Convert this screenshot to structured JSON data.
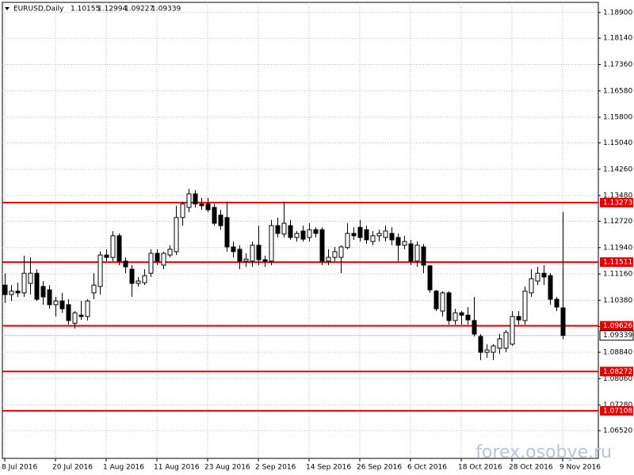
{
  "chart_data": {
    "type": "candlestick",
    "title": "EURUSD,Daily",
    "watermark": "forex.osobye.ru",
    "categories": [
      "8 Jul 2016",
      null,
      null,
      null,
      null,
      null,
      null,
      null,
      "20 Jul 2016",
      null,
      null,
      null,
      null,
      null,
      null,
      null,
      "1 Aug 2016",
      null,
      null,
      null,
      null,
      null,
      null,
      null,
      "11 Aug 2016",
      null,
      null,
      null,
      null,
      null,
      null,
      null,
      "23 Aug 2016",
      null,
      null,
      null,
      null,
      null,
      null,
      null,
      "2 Sep 2016",
      null,
      null,
      null,
      null,
      null,
      null,
      null,
      "14 Sep 2016",
      null,
      null,
      null,
      null,
      null,
      null,
      null,
      "26 Sep 2016",
      null,
      null,
      null,
      null,
      null,
      null,
      null,
      "6 Oct 2016",
      null,
      null,
      null,
      null,
      null,
      null,
      null,
      "18 Oct 2016",
      null,
      null,
      null,
      null,
      null,
      null,
      null,
      "28 Oct 2016",
      null,
      null,
      null,
      null,
      null,
      null,
      null,
      "9 Nov 2016"
    ],
    "open": [
      1.1083,
      1.1055,
      1.1065,
      1.106,
      1.1088,
      1.1118,
      1.1079,
      1.1069,
      1.1025,
      1.1036,
      1.1025,
      1.097,
      1.0994,
      1.099,
      1.106,
      1.1079,
      1.1172,
      1.1165,
      1.1229,
      1.1154,
      1.113,
      1.1088,
      1.109,
      1.1118,
      1.1177,
      1.1142,
      1.1172,
      1.1182,
      1.1283,
      1.1313,
      1.1353,
      1.1323,
      1.1323,
      1.1313,
      1.129,
      1.1283,
      1.1196,
      1.1189,
      1.1154,
      1.1154,
      1.1201,
      1.1158,
      1.1154,
      1.1259,
      1.1234,
      1.1259,
      1.1224,
      1.1243,
      1.1224,
      1.1247,
      1.1247,
      1.1154,
      1.1165,
      1.1165,
      1.1194,
      1.1236,
      1.1254,
      1.1247,
      1.1212,
      1.1229,
      1.1224,
      1.1236,
      1.1224,
      1.1201,
      1.1205,
      1.1154,
      1.1196,
      1.114,
      1.1065,
      1.1006,
      1.106,
      1.0978,
      1.1001,
      1.0994,
      1.0978,
      1.0931,
      1.0884,
      1.0884,
      1.0896,
      1.0896,
      1.0908,
      1.099,
      1.0978,
      1.106,
      1.1095,
      1.1118,
      1.1111,
      1.1041,
      1.10155
    ],
    "high": [
      1.1118,
      1.1083,
      1.109,
      1.117,
      1.1165,
      1.113,
      1.1095,
      1.1083,
      1.1048,
      1.106,
      1.1041,
      1.1006,
      1.1036,
      1.1041,
      1.1118,
      1.1183,
      1.1189,
      1.1243,
      1.1236,
      1.1165,
      1.1142,
      1.1107,
      1.113,
      1.1189,
      1.1189,
      1.1182,
      1.1201,
      1.1318,
      1.133,
      1.1368,
      1.1364,
      1.1341,
      1.1341,
      1.1323,
      1.1306,
      1.133,
      1.1212,
      1.1201,
      1.1177,
      1.1212,
      1.1259,
      1.117,
      1.1276,
      1.1283,
      1.133,
      1.1276,
      1.1243,
      1.1259,
      1.1266,
      1.1254,
      1.1254,
      1.1189,
      1.1196,
      1.1201,
      1.1266,
      1.1254,
      1.1276,
      1.1259,
      1.1243,
      1.1247,
      1.1259,
      1.1254,
      1.1236,
      1.1229,
      1.1217,
      1.1212,
      1.1205,
      1.1142,
      1.1069,
      1.1065,
      1.1065,
      1.1013,
      1.1006,
      1.1018,
      1.1048,
      1.0938,
      1.0908,
      1.0908,
      1.0938,
      1.095,
      1.1006,
      1.1006,
      1.1079,
      1.113,
      1.1137,
      1.1142,
      1.1118,
      1.1048,
      1.12994
    ],
    "low": [
      1.103,
      1.1036,
      1.1048,
      1.1048,
      1.1055,
      1.1036,
      1.1025,
      1.1013,
      1.099,
      1.1001,
      1.0966,
      1.0954,
      1.098,
      1.0978,
      1.1041,
      1.1055,
      1.1154,
      1.1154,
      1.1142,
      1.1118,
      1.1048,
      1.1079,
      1.1083,
      1.1107,
      1.1142,
      1.113,
      1.1165,
      1.1172,
      1.1259,
      1.1299,
      1.1313,
      1.1306,
      1.1299,
      1.1259,
      1.1247,
      1.1182,
      1.1165,
      1.113,
      1.1137,
      1.1137,
      1.1142,
      1.1137,
      1.1142,
      1.1224,
      1.1224,
      1.1217,
      1.1212,
      1.1212,
      1.1212,
      1.1224,
      1.1142,
      1.1142,
      1.1154,
      1.1118,
      1.1189,
      1.1217,
      1.1212,
      1.1205,
      1.1201,
      1.1212,
      1.1212,
      1.1201,
      1.1154,
      1.1189,
      1.1142,
      1.1137,
      1.1118,
      1.106,
      1.1006,
      1.099,
      1.0966,
      1.0966,
      1.0966,
      1.0966,
      1.0931,
      1.0861,
      1.0868,
      1.0861,
      1.0879,
      1.0884,
      1.0903,
      1.0966,
      1.0966,
      1.1048,
      1.1083,
      1.1083,
      1.1025,
      1.1006,
      1.09227
    ],
    "close": [
      1.1055,
      1.1065,
      1.106,
      1.1118,
      1.1118,
      1.1041,
      1.1048,
      1.1025,
      1.1036,
      1.1013,
      1.0978,
      1.1001,
      1.099,
      1.1036,
      1.1083,
      1.1172,
      1.1165,
      1.1229,
      1.1154,
      1.1137,
      1.1088,
      1.1095,
      1.1111,
      1.1177,
      1.1154,
      1.1177,
      1.1189,
      1.1283,
      1.1323,
      1.1353,
      1.1323,
      1.1318,
      1.1306,
      1.1266,
      1.1259,
      1.1196,
      1.1182,
      1.1154,
      1.116,
      1.1201,
      1.1158,
      1.1154,
      1.1259,
      1.1236,
      1.1266,
      1.1224,
      1.1236,
      1.1219,
      1.1247,
      1.1236,
      1.1154,
      1.1165,
      1.1182,
      1.1196,
      1.1236,
      1.1229,
      1.1224,
      1.1217,
      1.1229,
      1.1236,
      1.1243,
      1.1217,
      1.1201,
      1.1212,
      1.1154,
      1.1201,
      1.1142,
      1.1069,
      1.1013,
      1.106,
      1.0978,
      1.1001,
      1.0994,
      1.098,
      1.0938,
      1.0884,
      1.0891,
      1.0903,
      1.0924,
      1.0943,
      1.099,
      1.098,
      1.1065,
      1.1102,
      1.1118,
      1.1107,
      1.1041,
      1.1018,
      1.09339
    ],
    "up_color": "#ffffff",
    "down_color": "#000000",
    "levels": {
      "color": "#e00000",
      "values": [
        1.13273,
        1.11511,
        1.09626,
        1.08272,
        1.07108
      ]
    },
    "ylim": [
      1.057,
      1.192
    ],
    "yticks": [
      {
        "value": 1.189,
        "label": "1.18900"
      },
      {
        "value": 1.1814,
        "label": "1.18140"
      },
      {
        "value": 1.1736,
        "label": "1.17360"
      },
      {
        "value": 1.1658,
        "label": "1.16580"
      },
      {
        "value": 1.158,
        "label": "1.15800"
      },
      {
        "value": 1.1504,
        "label": "1.15040"
      },
      {
        "value": 1.1426,
        "label": "1.14260"
      },
      {
        "value": 1.1348,
        "label": "1.13480"
      },
      {
        "value": 1.1272,
        "label": "1.12720"
      },
      {
        "value": 1.1194,
        "label": "1.11940"
      },
      {
        "value": 1.1116,
        "label": "1.11160"
      },
      {
        "value": 1.1038,
        "label": "1.10380"
      },
      {
        "value": 1.096,
        "label": "1.09600"
      },
      {
        "value": 1.0884,
        "label": "1.08840"
      },
      {
        "value": 1.0806,
        "label": "1.08060"
      },
      {
        "value": 1.0728,
        "label": "1.07280"
      },
      {
        "value": 1.0652,
        "label": "1.06520"
      }
    ],
    "grid": true
  }
}
